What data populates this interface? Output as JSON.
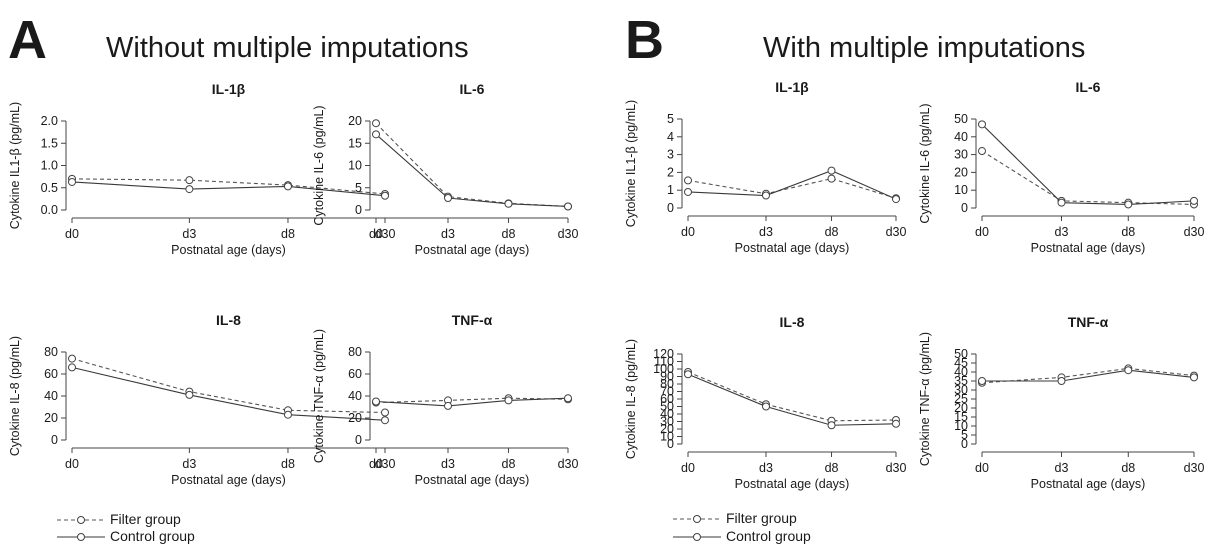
{
  "panels": [
    {
      "letter": "A",
      "title": "Without multiple imputations"
    },
    {
      "letter": "B",
      "title": "With multiple imputations"
    }
  ],
  "legend": {
    "filter_label": "Filter group",
    "control_label": "Control group"
  },
  "chart_data": [
    {
      "type": "line",
      "panel": "A",
      "title": "IL-1β",
      "xlabel": "Postnatal age (days)",
      "ylabel": "Cytokine IL1-β (pg/mL)",
      "categories": [
        "d0",
        "d3",
        "d8",
        "d30"
      ],
      "ylim": [
        0,
        2.0
      ],
      "yticks": [
        "0.0",
        "0.5",
        "1.0",
        "1.5",
        "2.0"
      ],
      "series": [
        {
          "name": "Filter group",
          "style": "dashed",
          "values": [
            0.7,
            0.67,
            0.56,
            0.36
          ]
        },
        {
          "name": "Control group",
          "style": "solid",
          "values": [
            0.63,
            0.47,
            0.53,
            0.32
          ]
        }
      ]
    },
    {
      "type": "line",
      "panel": "A",
      "title": "IL-6",
      "xlabel": "Postnatal age (days)",
      "ylabel": "Cytokine IL-6 (pg/mL)",
      "categories": [
        "d0",
        "d3",
        "d8",
        "d30"
      ],
      "ylim": [
        0,
        20
      ],
      "yticks": [
        "0",
        "5",
        "10",
        "15",
        "20"
      ],
      "series": [
        {
          "name": "Filter group",
          "style": "dashed",
          "values": [
            19.5,
            3.0,
            1.5,
            0.8
          ]
        },
        {
          "name": "Control group",
          "style": "solid",
          "values": [
            17.0,
            2.7,
            1.4,
            0.8
          ]
        }
      ]
    },
    {
      "type": "line",
      "panel": "A",
      "title": "IL-8",
      "xlabel": "Postnatal age (days)",
      "ylabel": "Cytokine IL-8 (pg/mL)",
      "categories": [
        "d0",
        "d3",
        "d8",
        "d30"
      ],
      "ylim": [
        0,
        80
      ],
      "yticks": [
        "0",
        "20",
        "40",
        "60",
        "80"
      ],
      "series": [
        {
          "name": "Filter group",
          "style": "dashed",
          "values": [
            74,
            44,
            27,
            25
          ]
        },
        {
          "name": "Control group",
          "style": "solid",
          "values": [
            66,
            41,
            23,
            18
          ]
        }
      ]
    },
    {
      "type": "line",
      "panel": "A",
      "title": "TNF-α",
      "xlabel": "Postnatal age (days)",
      "ylabel": "Cytokine TNF-α (pg/mL)",
      "categories": [
        "d0",
        "d3",
        "d8",
        "d30"
      ],
      "ylim": [
        0,
        80
      ],
      "yticks": [
        "0",
        "20",
        "40",
        "60",
        "80"
      ],
      "series": [
        {
          "name": "Filter group",
          "style": "dashed",
          "values": [
            34,
            36,
            38,
            37
          ]
        },
        {
          "name": "Control group",
          "style": "solid",
          "values": [
            35,
            31,
            36,
            38
          ]
        }
      ]
    },
    {
      "type": "line",
      "panel": "B",
      "title": "IL-1β",
      "xlabel": "Postnatal age (days)",
      "ylabel": "Cytokine IL1-β (pg/mL)",
      "categories": [
        "d0",
        "d3",
        "d8",
        "d30"
      ],
      "ylim": [
        0,
        5
      ],
      "yticks": [
        "0",
        "1",
        "2",
        "3",
        "4",
        "5"
      ],
      "series": [
        {
          "name": "Filter group",
          "style": "dashed",
          "values": [
            1.55,
            0.8,
            1.65,
            0.55
          ]
        },
        {
          "name": "Control group",
          "style": "solid",
          "values": [
            0.9,
            0.7,
            2.1,
            0.5
          ]
        }
      ]
    },
    {
      "type": "line",
      "panel": "B",
      "title": "IL-6",
      "xlabel": "Postnatal age (days)",
      "ylabel": "Cytokine IL-6 (pg/mL)",
      "categories": [
        "d0",
        "d3",
        "d8",
        "d30"
      ],
      "ylim": [
        0,
        50
      ],
      "yticks": [
        "0",
        "10",
        "20",
        "30",
        "40",
        "50"
      ],
      "series": [
        {
          "name": "Filter group",
          "style": "dashed",
          "values": [
            32,
            4,
            3,
            2
          ]
        },
        {
          "name": "Control group",
          "style": "solid",
          "values": [
            47,
            3,
            2,
            4
          ]
        }
      ]
    },
    {
      "type": "line",
      "panel": "B",
      "title": "IL-8",
      "xlabel": "Postnatal age (days)",
      "ylabel": "Cytokine IL-8 (pg/mL)",
      "categories": [
        "d0",
        "d3",
        "d8",
        "d30"
      ],
      "ylim": [
        0,
        120
      ],
      "yticks": [
        "0",
        "10",
        "20",
        "30",
        "40",
        "50",
        "60",
        "70",
        "80",
        "90",
        "100",
        "110",
        "120"
      ],
      "series": [
        {
          "name": "Filter group",
          "style": "dashed",
          "values": [
            96,
            53,
            31,
            32
          ]
        },
        {
          "name": "Control group",
          "style": "solid",
          "values": [
            93,
            50,
            25,
            27
          ]
        }
      ]
    },
    {
      "type": "line",
      "panel": "B",
      "title": "TNF-α",
      "xlabel": "Postnatal age (days)",
      "ylabel": "Cytokine TNF-α (pg/mL)",
      "categories": [
        "d0",
        "d3",
        "d8",
        "d30"
      ],
      "ylim": [
        0,
        50
      ],
      "yticks": [
        "0",
        "5",
        "10",
        "15",
        "20",
        "25",
        "30",
        "35",
        "40",
        "45",
        "50"
      ],
      "series": [
        {
          "name": "Filter group",
          "style": "dashed",
          "values": [
            34,
            37,
            42,
            38
          ]
        },
        {
          "name": "Control group",
          "style": "solid",
          "values": [
            35,
            35,
            41,
            37
          ]
        }
      ]
    }
  ]
}
